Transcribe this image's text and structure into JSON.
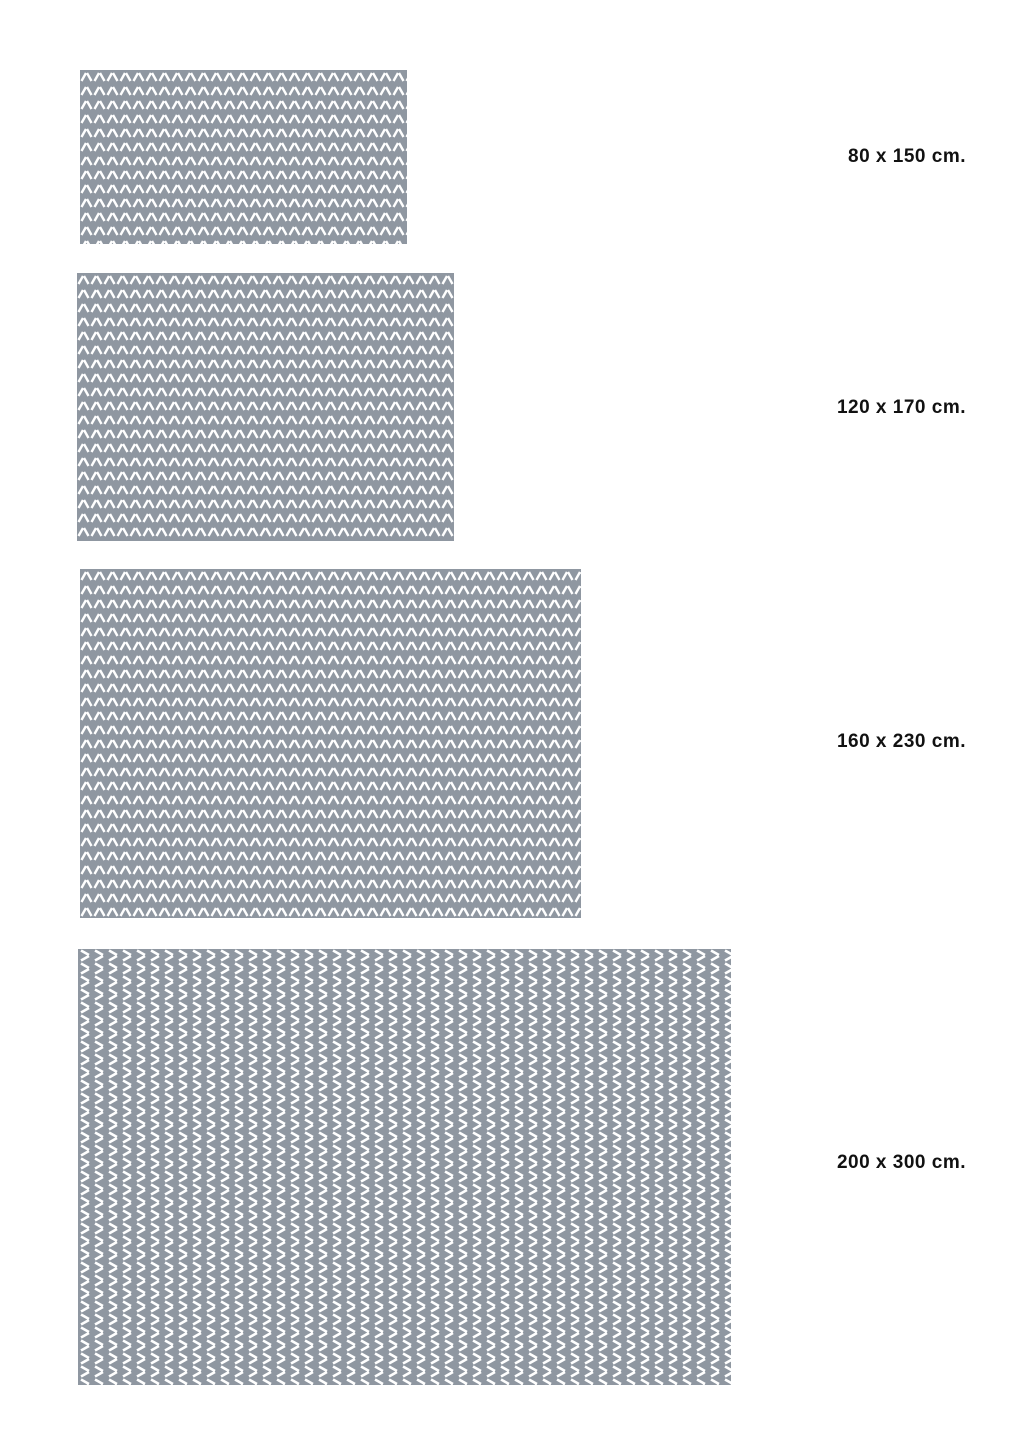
{
  "colors": {
    "rug_base": "#8f97a1",
    "rug_stripe": "#ffffff"
  },
  "rugs": [
    {
      "size_label": "80 x 150 cm.",
      "pattern": "vertical-herringbone"
    },
    {
      "size_label": "120 x 170 cm.",
      "pattern": "vertical-herringbone"
    },
    {
      "size_label": "160 x 230 cm.",
      "pattern": "vertical-herringbone"
    },
    {
      "size_label": "200 x 300 cm.",
      "pattern": "horizontal-herringbone"
    }
  ]
}
